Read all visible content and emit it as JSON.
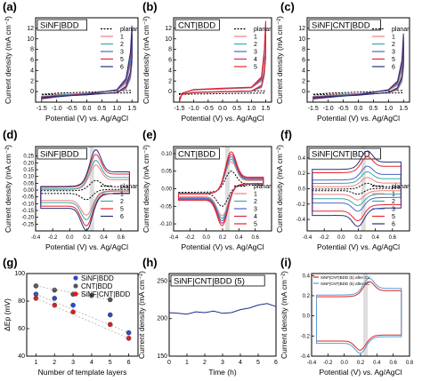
{
  "figure": {
    "ylabel_current": "Current density (mA cm⁻²)",
    "xlabel_potential": "Potential (V) vs. Ag/AgCl",
    "xlabel_layers": "Number of template layers",
    "ylabel_dEp": "ΔEp (mV)",
    "xlabel_time": "Time (h)"
  },
  "colors": {
    "planar": "#000000",
    "s1": "#f08080",
    "s2": "#3aa8a8",
    "s3": "#4a66c8",
    "s4": "#d6284f",
    "s5": "#e8232f",
    "s6": "#26307a",
    "blue_dot": "#2f49c8",
    "gray_dot": "#555555",
    "red_dot": "#e21b1b",
    "band": "#c8c8c8",
    "after_cv": "#e02020",
    "after_ac": "#5b9bd5",
    "trace_h": "#1c2c8a"
  },
  "chart_data": [
    {
      "panel_id": "a",
      "type": "line",
      "title": "SiNF|BDD",
      "xlim": [
        -1.7,
        1.7
      ],
      "ylim": [
        -2,
        14
      ],
      "xticks": [
        -1.5,
        -1.0,
        -0.5,
        0.0,
        0.5,
        1.0,
        1.5
      ],
      "xtick_labels": [
        "-1.5",
        "-1.0",
        "-0.5",
        "0.0",
        "0.5",
        "1.0",
        "1.5"
      ],
      "yticks": [
        0,
        2,
        4,
        6,
        8,
        10,
        12
      ],
      "ytick_labels": [
        "0",
        "2",
        "4",
        "6",
        "8",
        "10",
        "12"
      ],
      "legend": [
        "planar",
        "1",
        "2",
        "3",
        "5",
        "6"
      ],
      "series": [
        {
          "name": "planar",
          "x": [
            -1.5,
            -1.0,
            0.0,
            1.0,
            1.45
          ],
          "y": [
            -0.5,
            -0.3,
            -0.1,
            0.1,
            0.2
          ]
        },
        {
          "name": "1",
          "x": [
            -1.5,
            -1.0,
            0.0,
            1.0,
            1.3,
            1.45,
            1.5
          ],
          "y": [
            -1.0,
            -0.6,
            -0.3,
            0.2,
            1.5,
            5.0,
            10.0
          ]
        },
        {
          "name": "2",
          "x": [
            -1.5,
            -1.0,
            0.0,
            1.0,
            1.3,
            1.45,
            1.5
          ],
          "y": [
            -1.1,
            -0.7,
            -0.35,
            0.25,
            1.8,
            5.5,
            10.5
          ]
        },
        {
          "name": "3",
          "x": [
            -1.5,
            -1.0,
            0.0,
            1.0,
            1.3,
            1.45,
            1.5
          ],
          "y": [
            -1.2,
            -0.8,
            -0.4,
            0.3,
            2.0,
            6.0,
            11.0
          ]
        },
        {
          "name": "5",
          "x": [
            -1.5,
            -1.0,
            0.0,
            1.0,
            1.3,
            1.45,
            1.5
          ],
          "y": [
            -1.3,
            -0.9,
            -0.45,
            0.3,
            2.3,
            7.0,
            12.0
          ]
        },
        {
          "name": "6",
          "x": [
            -1.5,
            -1.0,
            0.0,
            1.0,
            1.3,
            1.45,
            1.5
          ],
          "y": [
            -1.4,
            -1.0,
            -0.5,
            0.35,
            2.5,
            7.5,
            12.5
          ]
        }
      ]
    },
    {
      "panel_id": "b",
      "type": "line",
      "title": "CNT|BDD",
      "xlim": [
        -1.7,
        1.7
      ],
      "ylim": [
        -2,
        14
      ],
      "xticks": [
        -1.5,
        -1.0,
        -0.5,
        0.0,
        0.5,
        1.0,
        1.5
      ],
      "xtick_labels": [
        "-1.5",
        "-1.0",
        "-0.5",
        "0.0",
        "0.5",
        "1.0",
        "1.5"
      ],
      "yticks": [
        0,
        2,
        4,
        6,
        8,
        10,
        12
      ],
      "ytick_labels": [
        "0",
        "2",
        "4",
        "6",
        "8",
        "10",
        "12"
      ],
      "legend": [
        "planar",
        "1",
        "2",
        "3",
        "4",
        "5"
      ],
      "series": [
        {
          "name": "planar",
          "x": [
            -1.5,
            -1.0,
            0.0,
            1.0,
            1.45
          ],
          "y": [
            -0.4,
            -0.2,
            -0.05,
            0.1,
            0.15
          ]
        },
        {
          "name": "1",
          "x": [
            -1.5,
            -1.4,
            -1.0,
            0.0,
            1.0,
            1.35,
            1.45,
            1.5
          ],
          "y": [
            -1.5,
            -0.3,
            0.3,
            0.5,
            0.7,
            2.0,
            6.0,
            12.5
          ]
        },
        {
          "name": "2",
          "x": [
            -1.5,
            -1.4,
            -1.0,
            0.0,
            1.0,
            1.35,
            1.45,
            1.5
          ],
          "y": [
            -1.6,
            -0.3,
            0.3,
            0.55,
            0.75,
            2.2,
            6.5,
            12.8
          ]
        },
        {
          "name": "3",
          "x": [
            -1.5,
            -1.4,
            -1.0,
            0.0,
            1.0,
            1.35,
            1.45,
            1.5
          ],
          "y": [
            -1.7,
            -0.3,
            0.35,
            0.6,
            0.8,
            2.4,
            7.0,
            13.0
          ]
        },
        {
          "name": "4",
          "x": [
            -1.5,
            -1.4,
            -1.0,
            0.0,
            1.0,
            1.35,
            1.45,
            1.5
          ],
          "y": [
            -1.8,
            -0.3,
            0.35,
            0.6,
            0.8,
            2.6,
            7.5,
            13.2
          ]
        },
        {
          "name": "5",
          "x": [
            -1.5,
            -1.4,
            -1.0,
            0.0,
            1.0,
            1.35,
            1.45,
            1.5
          ],
          "y": [
            -1.9,
            -0.3,
            0.4,
            0.65,
            0.85,
            2.8,
            8.0,
            13.4
          ]
        }
      ]
    },
    {
      "panel_id": "c",
      "type": "line",
      "title": "SiNF|CNT|BDD",
      "xlim": [
        -1.7,
        1.7
      ],
      "ylim": [
        -2,
        14
      ],
      "xticks": [
        -1.5,
        -1.0,
        -0.5,
        0.0,
        0.5,
        1.0,
        1.5
      ],
      "xtick_labels": [
        "-1.5",
        "-1.0",
        "-0.5",
        "0.0",
        "0.5",
        "1.0",
        "1.5"
      ],
      "yticks": [
        0,
        2,
        4,
        6,
        8,
        10,
        12
      ],
      "ytick_labels": [
        "0",
        "2",
        "4",
        "6",
        "8",
        "10",
        "12"
      ],
      "legend": [
        "planar",
        "1",
        "2",
        "3",
        "5",
        "6"
      ],
      "series": [
        {
          "name": "planar",
          "x": [
            -1.5,
            -1.0,
            0.0,
            1.0,
            1.45
          ],
          "y": [
            -0.5,
            -0.3,
            -0.1,
            0.1,
            0.2
          ]
        },
        {
          "name": "1",
          "x": [
            -1.5,
            -1.0,
            0.0,
            1.0,
            1.3,
            1.45,
            1.5
          ],
          "y": [
            -1.0,
            -0.7,
            -0.4,
            0.2,
            1.2,
            4.0,
            8.5
          ]
        },
        {
          "name": "2",
          "x": [
            -1.5,
            -1.0,
            0.0,
            1.0,
            1.3,
            1.45,
            1.5
          ],
          "y": [
            -1.1,
            -0.8,
            -0.45,
            0.25,
            1.4,
            4.5,
            9.0
          ]
        },
        {
          "name": "3",
          "x": [
            -1.5,
            -1.0,
            0.0,
            1.0,
            1.3,
            1.45,
            1.5
          ],
          "y": [
            -1.2,
            -0.9,
            -0.5,
            0.3,
            1.6,
            5.0,
            9.5
          ]
        },
        {
          "name": "5",
          "x": [
            -1.5,
            -1.0,
            0.0,
            1.0,
            1.3,
            1.45,
            1.5
          ],
          "y": [
            -1.3,
            -1.0,
            -0.55,
            0.3,
            1.8,
            5.5,
            10.5
          ]
        },
        {
          "name": "6",
          "x": [
            -1.5,
            -1.0,
            0.0,
            1.0,
            1.3,
            1.45,
            1.5
          ],
          "y": [
            -1.4,
            -1.1,
            -0.6,
            0.35,
            2.0,
            6.0,
            11.0
          ]
        }
      ]
    },
    {
      "panel_id": "d",
      "type": "line",
      "title": "SiNF|BDD",
      "xlim": [
        -0.4,
        0.8
      ],
      "ylim": [
        -0.3,
        0.32
      ],
      "xticks": [
        -0.4,
        -0.2,
        0.0,
        0.2,
        0.4,
        0.6
      ],
      "xtick_labels": [
        "-0.4",
        "-0.2",
        "0.0",
        "0.2",
        "0.4",
        "0.6"
      ],
      "yticks": [
        -0.25,
        -0.2,
        -0.15,
        -0.1,
        -0.05,
        0.0,
        0.05,
        0.1,
        0.15,
        0.2,
        0.25
      ],
      "ytick_labels": [
        "-0.25",
        "-0.20",
        "-0.15",
        "-0.10",
        "-0.05",
        "0.00",
        "0.05",
        "0.10",
        "0.15",
        "0.20",
        "0.25"
      ],
      "band_x": 0.26,
      "legend": [
        "planar",
        "1",
        "2",
        "5",
        "6"
      ],
      "series": [
        {
          "name": "planar",
          "amp": 0.05,
          "cap": 0.01
        },
        {
          "name": "1",
          "amp": 0.12,
          "cap": 0.04
        },
        {
          "name": "2",
          "amp": 0.14,
          "cap": 0.05
        },
        {
          "name": "5",
          "amp": 0.16,
          "cap": 0.07
        },
        {
          "name": "6",
          "amp": 0.18,
          "cap": 0.08
        }
      ]
    },
    {
      "panel_id": "e",
      "type": "line",
      "title": "CNT|BDD",
      "xlim": [
        -0.4,
        0.8
      ],
      "ylim": [
        -0.12,
        0.12
      ],
      "xticks": [
        -0.4,
        -0.2,
        0.0,
        0.2,
        0.4,
        0.6
      ],
      "xtick_labels": [
        "-0.4",
        "-0.2",
        "0.0",
        "0.2",
        "0.4",
        "0.6"
      ],
      "yticks": [
        -0.1,
        -0.05,
        0.0,
        0.05,
        0.1
      ],
      "ytick_labels": [
        "-0.10",
        "-0.05",
        "0.00",
        "0.05",
        "0.10"
      ],
      "band_x": 0.26,
      "legend": [
        "planar",
        "1",
        "2",
        "3",
        "4",
        "5"
      ],
      "series": [
        {
          "name": "planar",
          "amp": 0.04,
          "cap": 0.002
        },
        {
          "name": "1",
          "amp": 0.06,
          "cap": 0.005
        },
        {
          "name": "2",
          "amp": 0.065,
          "cap": 0.006
        },
        {
          "name": "3",
          "amp": 0.07,
          "cap": 0.007
        },
        {
          "name": "4",
          "amp": 0.075,
          "cap": 0.008
        },
        {
          "name": "5",
          "amp": 0.08,
          "cap": 0.009
        }
      ]
    },
    {
      "panel_id": "f",
      "type": "line",
      "title": "SiNF|CNT|BDD",
      "xlim": [
        -0.4,
        0.8
      ],
      "ylim": [
        -0.55,
        0.55
      ],
      "xticks": [
        -0.4,
        -0.2,
        0.0,
        0.2,
        0.4,
        0.6
      ],
      "xtick_labels": [
        "-0.4",
        "-0.2",
        "0.0",
        "0.2",
        "0.4",
        "0.6"
      ],
      "yticks": [
        -0.4,
        -0.2,
        0.0,
        0.2,
        0.4
      ],
      "ytick_labels": [
        "-0.4",
        "-0.2",
        "0.0",
        "0.2",
        "0.4"
      ],
      "band_x": 0.26,
      "legend": [
        "planar",
        "1",
        "2",
        "3",
        "5",
        "6"
      ],
      "series": [
        {
          "name": "planar",
          "amp": 0.05,
          "cap": 0.01
        },
        {
          "name": "1",
          "amp": 0.08,
          "cap": 0.05
        },
        {
          "name": "2",
          "amp": 0.1,
          "cap": 0.1
        },
        {
          "name": "3",
          "amp": 0.12,
          "cap": 0.15
        },
        {
          "name": "5",
          "amp": 0.14,
          "cap": 0.25
        },
        {
          "name": "6",
          "amp": 0.16,
          "cap": 0.3
        }
      ]
    },
    {
      "panel_id": "g",
      "type": "scatter",
      "xlim": [
        0.5,
        6.5
      ],
      "ylim": [
        40,
        100
      ],
      "xticks": [
        1,
        2,
        3,
        4,
        5,
        6
      ],
      "xtick_labels": [
        "1",
        "2",
        "3",
        "4",
        "5",
        "6"
      ],
      "yticks": [
        40,
        60,
        80,
        100
      ],
      "ytick_labels": [
        "40",
        "60",
        "80",
        "100"
      ],
      "legend": [
        "SiNF|BDD",
        "CNT|BDD",
        "SiNF|CNT|BDD"
      ],
      "series": [
        {
          "name": "SiNF|BDD",
          "x": [
            1,
            2,
            3,
            5,
            6
          ],
          "y": [
            85,
            82,
            77,
            70,
            57
          ]
        },
        {
          "name": "CNT|BDD",
          "x": [
            1,
            2,
            3,
            4,
            5
          ],
          "y": [
            91,
            88,
            85,
            84,
            81
          ]
        },
        {
          "name": "SiNF|CNT|BDD",
          "x": [
            1,
            2,
            3,
            5,
            6
          ],
          "y": [
            82,
            77,
            72,
            63,
            53
          ]
        }
      ]
    },
    {
      "panel_id": "h",
      "type": "line",
      "title": "SiNF|CNT|BDD (5)",
      "xlim": [
        0,
        6
      ],
      "ylim": [
        150,
        260
      ],
      "xticks": [
        0,
        1,
        2,
        3,
        4,
        5,
        6
      ],
      "xtick_labels": [
        "0",
        "1",
        "2",
        "3",
        "4",
        "5",
        "6"
      ],
      "yticks": [
        150,
        200,
        250
      ],
      "ytick_labels": [
        "150",
        "200",
        "250"
      ],
      "series": [
        {
          "name": "",
          "x": [
            0,
            0.5,
            1,
            1.5,
            2,
            2.5,
            3,
            3.5,
            4,
            4.5,
            5,
            5.5,
            6
          ],
          "y": [
            208,
            207,
            206,
            209,
            208,
            210,
            207,
            208,
            212,
            214,
            218,
            220,
            216
          ]
        }
      ]
    },
    {
      "panel_id": "i",
      "type": "line",
      "xlim": [
        -0.4,
        0.8
      ],
      "ylim": [
        -0.4,
        0.42
      ],
      "xticks": [
        -0.4,
        -0.2,
        0.0,
        0.2,
        0.4,
        0.6,
        0.8
      ],
      "xtick_labels": [
        "-0.4",
        "-0.2",
        "0.0",
        "0.2",
        "0.4",
        "0.6",
        "0.8"
      ],
      "yticks": [
        -0.4,
        -0.2,
        0.0,
        0.2,
        0.4
      ],
      "ytick_labels": [
        "-0.4",
        "-0.2",
        "0.0",
        "0.2",
        "0.4"
      ],
      "band_x": 0.26,
      "legend": [
        "SiNF|CNT|BDD (5) after CV",
        "SiNF|CNT|BDD (5) after AC"
      ],
      "series": [
        {
          "name": "SiNF|CNT|BDD (5) after CV",
          "amp": 0.1,
          "cap": 0.22
        },
        {
          "name": "SiNF|CNT|BDD (5) after AC",
          "amp": 0.11,
          "cap": 0.24
        }
      ]
    }
  ]
}
